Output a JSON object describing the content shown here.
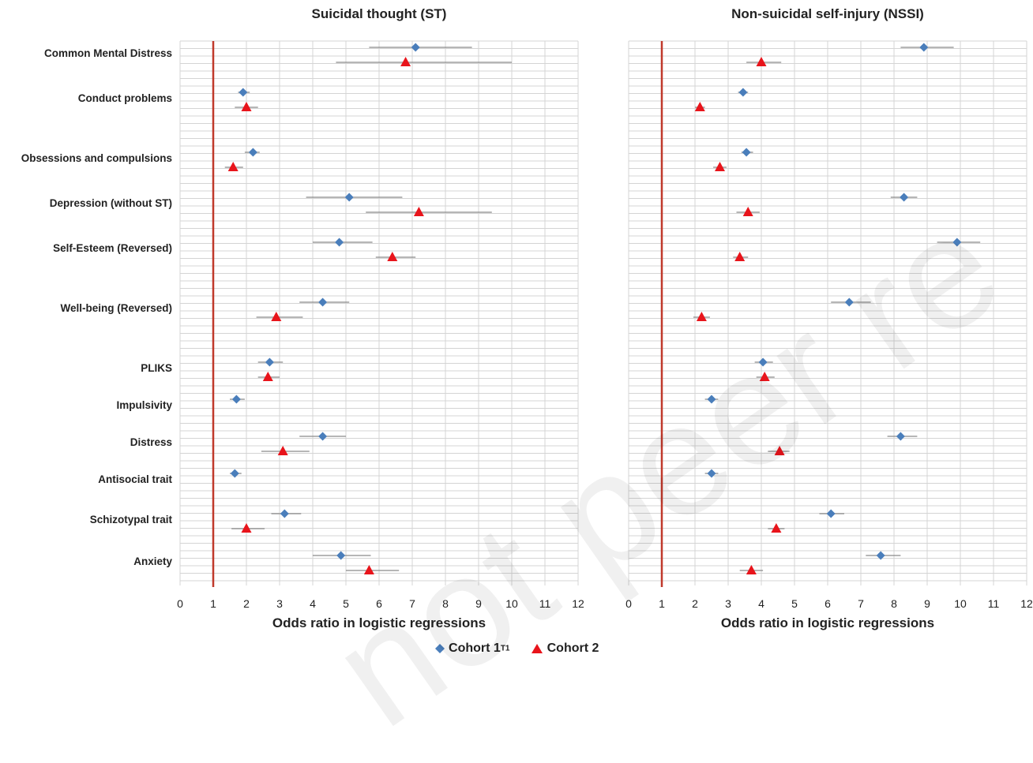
{
  "chart_data": {
    "type": "scatter",
    "categories": [
      "Common Mental Distress",
      "Conduct problems",
      "Obsessions and compulsions",
      "Depression (without ST)",
      "Self-Esteem (Reversed)",
      "Well-being (Reversed)",
      "PLIKS",
      "Impulsivity",
      "Distress",
      "Antisocial trait",
      "Schizotypal  trait",
      "Anxiety"
    ],
    "xlim": [
      0,
      12
    ],
    "xticks": [
      "0",
      "1",
      "2",
      "3",
      "4",
      "5",
      "6",
      "7",
      "8",
      "9",
      "10",
      "11",
      "12"
    ],
    "reference_line": 1,
    "xlabel": "Odds ratio in logistic regressions",
    "legend": {
      "placement": "bottom",
      "cohort1": "Cohort 1",
      "cohort1_sub": "T1",
      "cohort2": "Cohort 2"
    },
    "colors": {
      "cohort1": "#4a7ebb",
      "cohort2": "#e8141b",
      "refline": "#c0392b",
      "whisker": "#8a8a8a",
      "grid": "#d4d4d4"
    },
    "panels": [
      {
        "title": "Suicidal thought (ST)",
        "series": [
          {
            "name": "Cohort 1",
            "values": [
              7.1,
              1.9,
              2.2,
              5.1,
              4.8,
              4.3,
              2.7,
              1.7,
              4.3,
              1.65,
              3.15,
              4.85
            ],
            "ci_low": [
              5.7,
              1.75,
              1.95,
              3.8,
              4.0,
              3.6,
              2.35,
              1.5,
              3.6,
              1.5,
              2.75,
              4.0
            ],
            "ci_high": [
              8.8,
              2.1,
              2.4,
              6.7,
              5.8,
              5.1,
              3.1,
              1.95,
              5.0,
              1.85,
              3.65,
              5.75
            ]
          },
          {
            "name": "Cohort 2",
            "values": [
              6.8,
              2.0,
              1.6,
              7.2,
              6.4,
              2.9,
              2.65,
              null,
              3.1,
              null,
              2.0,
              5.7
            ],
            "ci_low": [
              4.7,
              1.65,
              1.35,
              5.6,
              5.9,
              2.3,
              2.35,
              null,
              2.45,
              null,
              1.55,
              5.0
            ],
            "ci_high": [
              10.0,
              2.35,
              1.9,
              9.4,
              7.1,
              3.7,
              3.0,
              null,
              3.9,
              null,
              2.55,
              6.6
            ]
          }
        ]
      },
      {
        "title": "Non-suicidal self-injury (NSSI)",
        "series": [
          {
            "name": "Cohort 1",
            "values": [
              8.9,
              3.45,
              3.55,
              8.3,
              9.9,
              6.65,
              4.05,
              2.5,
              8.2,
              2.5,
              6.1,
              7.6
            ],
            "ci_low": [
              8.2,
              3.3,
              3.4,
              7.9,
              9.3,
              6.1,
              3.8,
              2.3,
              7.8,
              2.3,
              5.75,
              7.15
            ],
            "ci_high": [
              9.8,
              3.6,
              3.75,
              8.7,
              10.6,
              7.3,
              4.35,
              2.7,
              8.7,
              2.7,
              6.5,
              8.2
            ]
          },
          {
            "name": "Cohort 2",
            "values": [
              4.0,
              2.15,
              2.75,
              3.6,
              3.35,
              2.2,
              4.1,
              null,
              4.55,
              null,
              4.45,
              3.7
            ],
            "ci_low": [
              3.55,
              2.0,
              2.55,
              3.25,
              3.15,
              1.95,
              3.85,
              null,
              4.2,
              null,
              4.2,
              3.35
            ],
            "ci_high": [
              4.6,
              2.3,
              2.95,
              3.95,
              3.6,
              2.45,
              4.4,
              null,
              4.85,
              null,
              4.7,
              4.05
            ]
          }
        ]
      }
    ]
  }
}
